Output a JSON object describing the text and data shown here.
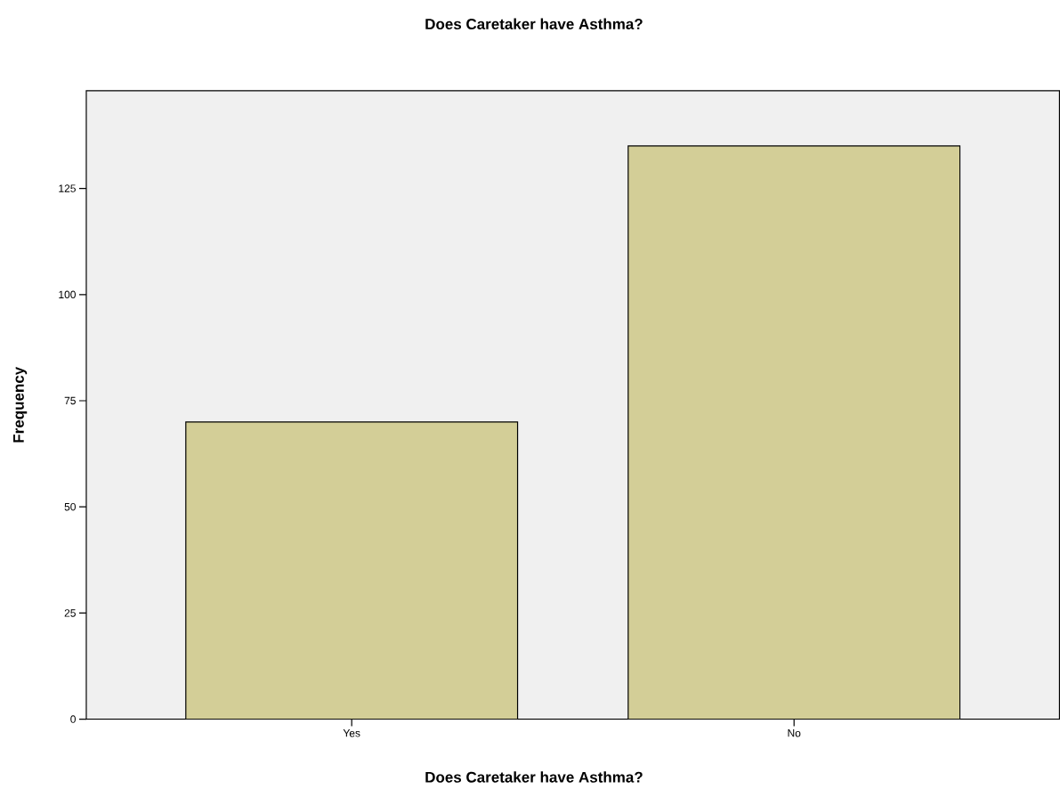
{
  "chart_data": {
    "type": "bar",
    "title": "Does Caretaker have Asthma?",
    "xlabel": "Does Caretaker have Asthma?",
    "ylabel": "Frequency",
    "categories": [
      "Yes",
      "No"
    ],
    "values": [
      70,
      135
    ],
    "color": "#d3ce97",
    "ylim": [
      0,
      148
    ],
    "yticks": [
      0,
      25,
      50,
      75,
      100,
      125
    ],
    "grid": false
  }
}
